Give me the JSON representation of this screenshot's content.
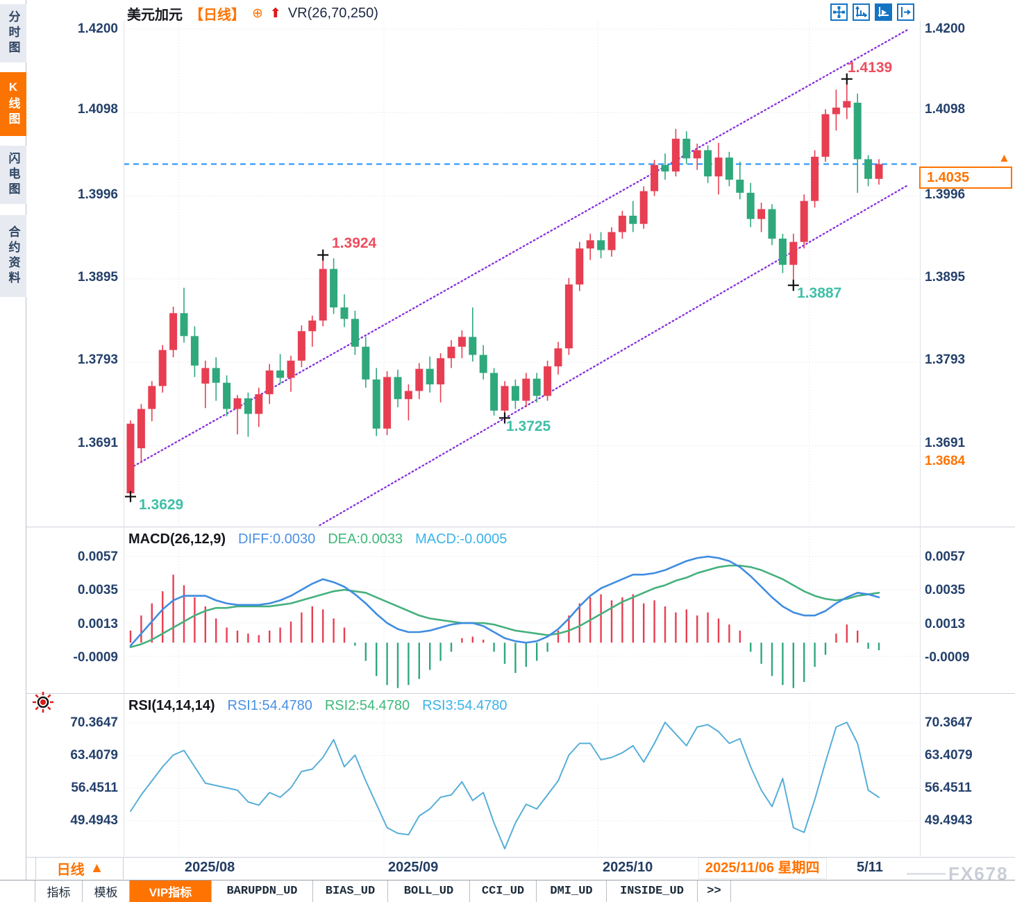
{
  "header": {
    "symbol": "美元加元",
    "period": "【日线】",
    "plus_glyph": "⊕",
    "arrow_glyph": "⬆",
    "indicator": "VR(26,70,250)"
  },
  "sidebar": {
    "items": [
      {
        "label": "分时图",
        "active": false
      },
      {
        "label": "K线图",
        "active": true
      },
      {
        "label": "闪电图",
        "active": false
      },
      {
        "label": "合约资料",
        "active": false
      }
    ]
  },
  "price_axis": {
    "levels": [
      "1.4200",
      "1.4098",
      "1.3996",
      "1.3895",
      "1.3793",
      "1.3691"
    ],
    "extra_right": "1.3684",
    "last_price": "1.4035",
    "last_arrow": "▲"
  },
  "macd": {
    "title": "MACD(26,12,9)",
    "diff_label": "DIFF:0.0030",
    "dea_label": "DEA:0.0033",
    "macd_label": "MACD:-0.0005",
    "levels": [
      "0.0057",
      "0.0035",
      "0.0013",
      "-0.0009"
    ]
  },
  "rsi": {
    "title": "RSI(14,14,14)",
    "rsi1_label": "RSI1:54.4780",
    "rsi2_label": "RSI2:54.4780",
    "rsi3_label": "RSI3:54.4780",
    "levels": [
      "70.3647",
      "63.4079",
      "56.4511",
      "49.4943"
    ]
  },
  "time_axis": {
    "months": [
      "2025/08",
      "2025/09",
      "2025/10"
    ],
    "highlight": "2025/11/06 星期四",
    "partial": "5/11",
    "period": "日线",
    "period_arrow": "▲"
  },
  "watermark": {
    "text": "FX678"
  },
  "tabs": {
    "items": [
      {
        "label": "指标",
        "active": false,
        "mono": false
      },
      {
        "label": "模板",
        "active": false,
        "mono": false
      },
      {
        "label": "VIP指标",
        "active": true,
        "mono": false
      },
      {
        "label": "BARUPDN_UD",
        "active": false,
        "mono": true
      },
      {
        "label": "BIAS_UD",
        "active": false,
        "mono": true
      },
      {
        "label": "BOLL_UD",
        "active": false,
        "mono": true
      },
      {
        "label": "CCI_UD",
        "active": false,
        "mono": true
      },
      {
        "label": "DMI_UD",
        "active": false,
        "mono": true
      },
      {
        "label": "INSIDE_UD",
        "active": false,
        "mono": true
      },
      {
        "label": ">>",
        "active": false,
        "mono": true
      }
    ]
  },
  "colors": {
    "up_red": "#e83e52",
    "down_green": "#2fa87c",
    "channel_purple": "#8833dd",
    "price_line_blue": "#1e8fff",
    "grid": "#dcdfe4",
    "marker_black": "#111111",
    "macd_diff": "#3f8ce0",
    "macd_dea": "#45b07c",
    "rsi_line": "#56aed8",
    "accent_orange": "#ff7300",
    "annotation_high": "#ef4d5e",
    "annotation_low": "#3fbfa8"
  },
  "chart_data": {
    "type": "candlestick+indicators",
    "title": "美元加元 日线 (USD/CAD daily) with VR(26,70,250) channel, MACD(26,12,9), RSI(14,14,14)",
    "main": {
      "ylim": [
        1.3594,
        1.421
      ],
      "grid_levels": [
        1.42,
        1.4098,
        1.3996,
        1.3895,
        1.3793,
        1.3691
      ],
      "last_price": 1.4035,
      "candles": [
        [
          1.3633,
          1.3722,
          1.3629,
          1.3718
        ],
        [
          1.3688,
          1.3742,
          1.367,
          1.3736
        ],
        [
          1.3736,
          1.377,
          1.3721,
          1.3764
        ],
        [
          1.3764,
          1.3814,
          1.3756,
          1.3808
        ],
        [
          1.3808,
          1.3861,
          1.3799,
          1.3853
        ],
        [
          1.3853,
          1.3884,
          1.3817,
          1.3825
        ],
        [
          1.3825,
          1.3837,
          1.3775,
          1.3789
        ],
        [
          1.3767,
          1.3795,
          1.3737,
          1.3786
        ],
        [
          1.3786,
          1.3799,
          1.3746,
          1.3768
        ],
        [
          1.3768,
          1.3777,
          1.3727,
          1.3736
        ],
        [
          1.3736,
          1.3753,
          1.3705,
          1.3749
        ],
        [
          1.3749,
          1.3756,
          1.3702,
          1.373
        ],
        [
          1.373,
          1.3762,
          1.3714,
          1.3754
        ],
        [
          1.3754,
          1.3791,
          1.3742,
          1.3783
        ],
        [
          1.3783,
          1.3803,
          1.3766,
          1.3774
        ],
        [
          1.3774,
          1.3801,
          1.3757,
          1.3795
        ],
        [
          1.3795,
          1.3838,
          1.3787,
          1.3831
        ],
        [
          1.3831,
          1.385,
          1.3812,
          1.3844
        ],
        [
          1.3844,
          1.3924,
          1.3837,
          1.3907
        ],
        [
          1.3907,
          1.392,
          1.3852,
          1.386
        ],
        [
          1.386,
          1.3876,
          1.3836,
          1.3846
        ],
        [
          1.3846,
          1.3856,
          1.3802,
          1.3812
        ],
        [
          1.3812,
          1.3824,
          1.3762,
          1.3772
        ],
        [
          1.3772,
          1.3786,
          1.3703,
          1.3712
        ],
        [
          1.3712,
          1.3782,
          1.3704,
          1.3775
        ],
        [
          1.3775,
          1.3784,
          1.3738,
          1.3748
        ],
        [
          1.3748,
          1.3766,
          1.3722,
          1.3758
        ],
        [
          1.3758,
          1.3792,
          1.3748,
          1.3785
        ],
        [
          1.3785,
          1.38,
          1.3756,
          1.3766
        ],
        [
          1.3766,
          1.3804,
          1.3744,
          1.3798
        ],
        [
          1.3798,
          1.382,
          1.3786,
          1.3812
        ],
        [
          1.3812,
          1.3832,
          1.3798,
          1.3824
        ],
        [
          1.3824,
          1.386,
          1.3794,
          1.3802
        ],
        [
          1.3802,
          1.3814,
          1.3772,
          1.378
        ],
        [
          1.378,
          1.3786,
          1.3728,
          1.3734
        ],
        [
          1.3734,
          1.377,
          1.3725,
          1.3764
        ],
        [
          1.3764,
          1.3772,
          1.3736,
          1.3746
        ],
        [
          1.3746,
          1.378,
          1.3738,
          1.3773
        ],
        [
          1.3773,
          1.378,
          1.3744,
          1.3752
        ],
        [
          1.3752,
          1.3795,
          1.3746,
          1.3788
        ],
        [
          1.3788,
          1.3818,
          1.3778,
          1.381
        ],
        [
          1.381,
          1.3896,
          1.3802,
          1.3888
        ],
        [
          1.3888,
          1.394,
          1.388,
          1.3932
        ],
        [
          1.3932,
          1.395,
          1.3918,
          1.3942
        ],
        [
          1.3942,
          1.3952,
          1.392,
          1.393
        ],
        [
          1.393,
          1.3958,
          1.3922,
          1.3952
        ],
        [
          1.3952,
          1.3978,
          1.3944,
          1.3972
        ],
        [
          1.3972,
          1.399,
          1.3952,
          1.3962
        ],
        [
          1.3962,
          1.4008,
          1.3956,
          1.4002
        ],
        [
          1.4002,
          1.404,
          1.3996,
          1.4034
        ],
        [
          1.4034,
          1.4048,
          1.4016,
          1.4026
        ],
        [
          1.4026,
          1.4078,
          1.402,
          1.4066
        ],
        [
          1.4066,
          1.4075,
          1.4035,
          1.4042
        ],
        [
          1.4042,
          1.406,
          1.4028,
          1.4052
        ],
        [
          1.4052,
          1.4058,
          1.4012,
          1.402
        ],
        [
          1.402,
          1.4061,
          1.3998,
          1.4043
        ],
        [
          1.4043,
          1.405,
          1.4008,
          1.4016
        ],
        [
          1.4016,
          1.4038,
          1.3992,
          1.4
        ],
        [
          1.4,
          1.4012,
          1.3958,
          1.3968
        ],
        [
          1.3968,
          1.3988,
          1.3952,
          1.398
        ],
        [
          1.398,
          1.3986,
          1.3936,
          1.3944
        ],
        [
          1.3944,
          1.395,
          1.3902,
          1.3912
        ],
        [
          1.3912,
          1.395,
          1.3887,
          1.394
        ],
        [
          1.394,
          1.3998,
          1.3932,
          1.399
        ],
        [
          1.399,
          1.4052,
          1.3982,
          1.4044
        ],
        [
          1.4044,
          1.4102,
          1.4038,
          1.4096
        ],
        [
          1.4096,
          1.4126,
          1.4076,
          1.4104
        ],
        [
          1.4104,
          1.4139,
          1.409,
          1.4112
        ],
        [
          1.411,
          1.4121,
          1.4,
          1.4041
        ],
        [
          1.4041,
          1.4046,
          1.4008,
          1.4017
        ],
        [
          1.4017,
          1.4041,
          1.401,
          1.4035
        ]
      ],
      "channel": {
        "upper": {
          "i0": 0,
          "p0": 1.3664,
          "i1": 72.8,
          "p1": 1.42
        },
        "lower": {
          "i0": 17.7,
          "p0": 1.3594,
          "i1": 72.8,
          "p1": 1.401
        }
      },
      "grid_v_idx": [
        4.5,
        23.7,
        43.7,
        63.5
      ]
    },
    "markers": [
      {
        "i": 0,
        "p": 1.3629,
        "label": "1.3629",
        "kind": "low"
      },
      {
        "i": 18,
        "p": 1.3924,
        "label": "1.3924",
        "kind": "high"
      },
      {
        "i": 35,
        "p": 1.3725,
        "label": "1.3725",
        "kind": "low"
      },
      {
        "i": 62,
        "p": 1.3887,
        "label": "1.3887",
        "kind": "low"
      },
      {
        "i": 67,
        "p": 1.4139,
        "label": "1.4139",
        "kind": "high"
      }
    ],
    "macd": {
      "ylim": [
        -0.0032,
        0.0074
      ],
      "grid_levels": [
        0.0057,
        0.0035,
        0.0013,
        -0.0009
      ],
      "hist_x10000": [
        8,
        18,
        26,
        34,
        45,
        38,
        30,
        24,
        16,
        10,
        8,
        6,
        5,
        8,
        10,
        14,
        20,
        24,
        22,
        16,
        10,
        -2,
        -12,
        -22,
        -28,
        -30,
        -28,
        -24,
        -18,
        -12,
        -6,
        3,
        4,
        2,
        -6,
        -14,
        -20,
        -16,
        -12,
        -6,
        8,
        18,
        26,
        30,
        32,
        28,
        30,
        32,
        26,
        28,
        24,
        20,
        22,
        18,
        20,
        16,
        12,
        8,
        -6,
        -14,
        -22,
        -28,
        -30,
        -26,
        -16,
        -8,
        6,
        12,
        8,
        -4,
        -5
      ],
      "diff_x10000": [
        -2,
        6,
        14,
        22,
        28,
        31,
        31,
        31,
        28,
        26,
        25,
        25,
        25,
        26,
        28,
        31,
        35,
        39,
        42,
        40,
        37,
        32,
        26,
        19,
        13,
        9,
        7,
        7,
        8,
        10,
        12,
        13,
        13,
        11,
        7,
        3,
        1,
        0,
        1,
        4,
        9,
        16,
        24,
        31,
        36,
        39,
        42,
        45,
        45,
        46,
        48,
        51,
        54,
        56,
        57,
        56,
        54,
        50,
        44,
        37,
        30,
        24,
        20,
        18,
        18,
        21,
        26,
        30,
        33,
        32,
        30
      ],
      "dea_x10000": [
        -3,
        -1,
        2,
        6,
        10,
        14,
        18,
        21,
        23,
        23,
        24,
        24,
        24,
        24,
        25,
        26,
        28,
        30,
        32,
        34,
        35,
        34,
        33,
        30,
        27,
        24,
        21,
        18,
        16,
        15,
        14,
        13,
        13,
        13,
        12,
        10,
        8,
        7,
        6,
        5,
        6,
        8,
        11,
        15,
        19,
        23,
        27,
        30,
        33,
        36,
        38,
        41,
        43,
        46,
        48,
        50,
        51,
        51,
        50,
        48,
        45,
        42,
        38,
        34,
        31,
        29,
        28,
        29,
        31,
        32,
        33
      ]
    },
    "rsi": {
      "ylim": [
        42.2,
        74.8
      ],
      "grid_levels": [
        70.3647,
        63.4079,
        56.4511,
        49.4943
      ],
      "values": [
        51.5,
        55,
        58,
        61,
        63.5,
        64.5,
        61,
        57.5,
        57,
        56.5,
        56,
        53.5,
        52.8,
        55.5,
        54.5,
        56.5,
        60,
        60.5,
        63,
        66.8,
        61,
        63.5,
        58,
        53,
        48,
        46.8,
        46.5,
        50.5,
        52,
        54.5,
        55,
        57.8,
        53.8,
        55.5,
        49,
        43.5,
        49,
        53,
        52,
        55,
        58,
        63.5,
        66,
        66,
        62.5,
        63,
        64,
        65.5,
        62,
        66,
        70.5,
        68,
        65.5,
        69.5,
        70,
        68.5,
        66,
        67,
        61,
        56,
        52.5,
        58.5,
        48,
        47,
        54,
        62,
        69.5,
        70.5,
        66,
        56,
        54.478
      ]
    }
  }
}
